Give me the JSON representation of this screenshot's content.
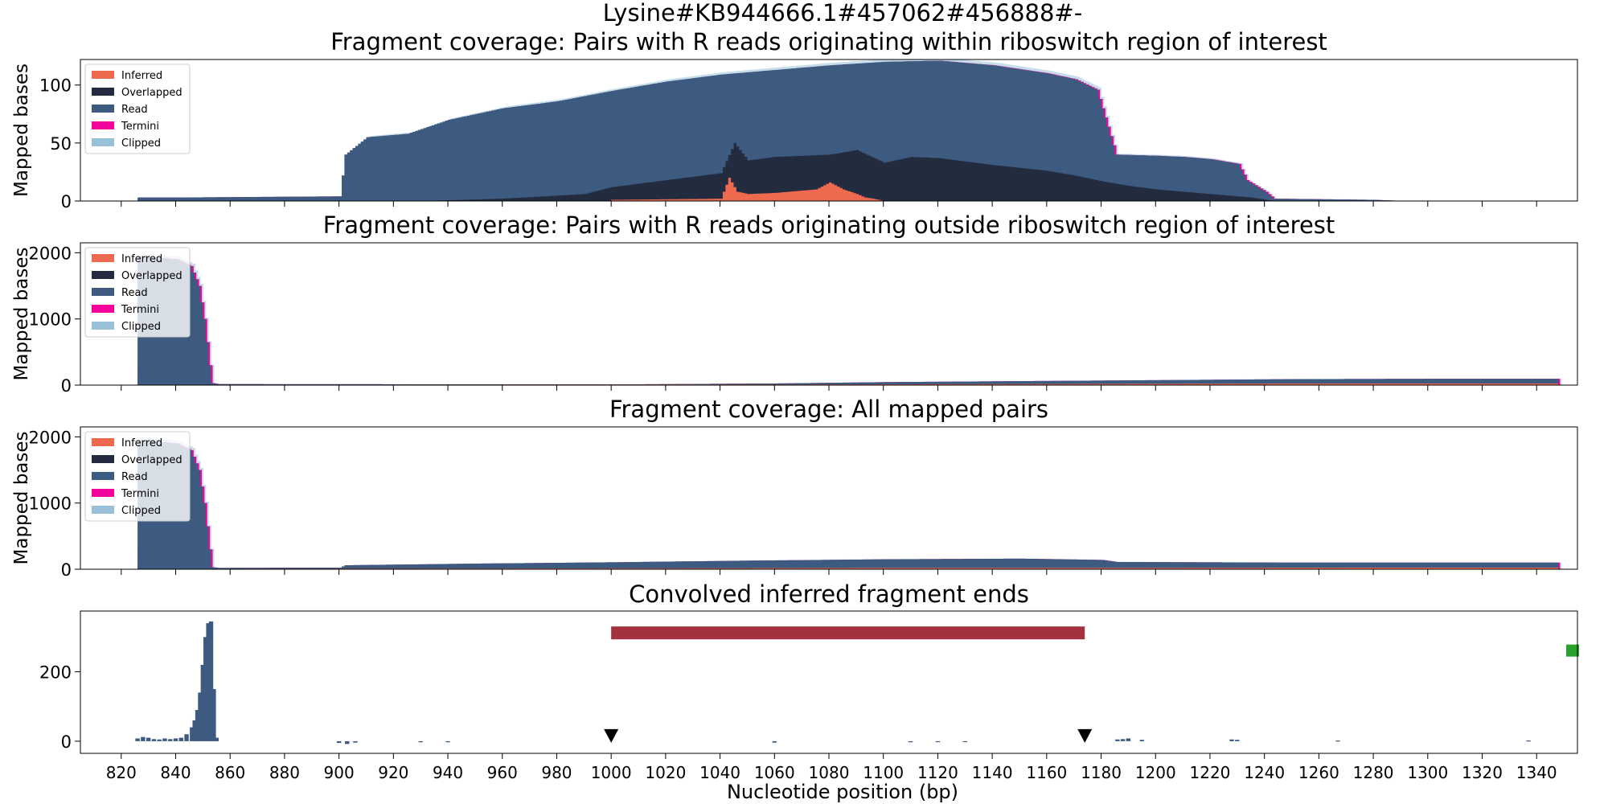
{
  "figure": {
    "suptitle": "Lysine#KB944666.1#457062#456888#-",
    "xlabel": "Nucleotide position (bp)"
  },
  "colors": {
    "inferred": "#ee6a4f",
    "overlapped": "#232c3f",
    "read": "#3d5a80",
    "termini": "#f3039b",
    "clipped": "#98c1d9",
    "region_bar": "#a3313e",
    "end_marker": "#2ca02c",
    "triangle": "#000000"
  },
  "chart_data": [
    {
      "type": "area",
      "title": "Fragment coverage: Pairs with R reads originating within riboswitch region of interest",
      "ylabel": "Mapped bases",
      "xlim": [
        805,
        1355
      ],
      "ylim": [
        0,
        122
      ],
      "yticks": [
        0,
        50,
        100
      ],
      "legend_position": "top-left",
      "legend": [
        "Inferred",
        "Overlapped",
        "Read",
        "Termini",
        "Clipped"
      ],
      "series": [
        {
          "name": "Read",
          "x": [
            826,
            840,
            900,
            902,
            910,
            925,
            940,
            960,
            980,
            1000,
            1020,
            1040,
            1060,
            1080,
            1100,
            1120,
            1140,
            1160,
            1170,
            1178,
            1185,
            1200,
            1210,
            1220,
            1230,
            1233,
            1240,
            1243,
            1280,
            1290
          ],
          "values": [
            3,
            3,
            4,
            40,
            55,
            58,
            70,
            80,
            86,
            95,
            103,
            109,
            113,
            117,
            120,
            121,
            117,
            110,
            105,
            96,
            40,
            39,
            38,
            36,
            32,
            18,
            8,
            2,
            1,
            0
          ]
        },
        {
          "name": "Overlapped",
          "x": [
            826,
            930,
            960,
            990,
            1000,
            1020,
            1040,
            1045,
            1050,
            1060,
            1080,
            1090,
            1100,
            1110,
            1120,
            1140,
            1160,
            1170,
            1180,
            1190,
            1200,
            1220,
            1235,
            1243
          ],
          "values": [
            0,
            0,
            2,
            6,
            12,
            18,
            24,
            50,
            35,
            38,
            40,
            44,
            33,
            38,
            37,
            31,
            26,
            22,
            17,
            13,
            10,
            6,
            3,
            0
          ]
        },
        {
          "name": "Inferred",
          "x": [
            1000,
            1040,
            1043,
            1046,
            1050,
            1060,
            1075,
            1080,
            1085,
            1090,
            1093,
            1096,
            1100
          ],
          "values": [
            1,
            2,
            20,
            8,
            6,
            7,
            10,
            16,
            10,
            6,
            3,
            2,
            0
          ]
        }
      ]
    },
    {
      "type": "area",
      "title": "Fragment coverage: Pairs with R reads originating outside riboswitch region of interest",
      "ylabel": "Mapped bases",
      "xlim": [
        805,
        1355
      ],
      "ylim": [
        0,
        2150
      ],
      "yticks": [
        0,
        1000,
        2000
      ],
      "legend_position": "top-left",
      "legend": [
        "Inferred",
        "Overlapped",
        "Read",
        "Termini",
        "Clipped"
      ],
      "series": [
        {
          "name": "Read",
          "x": [
            826,
            840,
            845,
            848,
            850,
            852,
            853,
            855,
            1000,
            1060,
            1100,
            1150,
            1200,
            1250,
            1300,
            1347
          ],
          "values": [
            1950,
            1900,
            1800,
            1500,
            1000,
            300,
            30,
            15,
            10,
            25,
            45,
            60,
            75,
            90,
            95,
            95
          ]
        },
        {
          "name": "Inferred",
          "x": [
            826,
            1080,
            1200,
            1300,
            1347
          ],
          "values": [
            5,
            10,
            20,
            25,
            25
          ]
        }
      ]
    },
    {
      "type": "area",
      "title": "Fragment coverage: All mapped pairs",
      "ylabel": "Mapped bases",
      "xlim": [
        805,
        1355
      ],
      "ylim": [
        0,
        2150
      ],
      "yticks": [
        0,
        1000,
        2000
      ],
      "legend_position": "top-left",
      "legend": [
        "Inferred",
        "Overlapped",
        "Read",
        "Termini",
        "Clipped"
      ],
      "series": [
        {
          "name": "Read",
          "x": [
            826,
            840,
            845,
            848,
            850,
            852,
            853,
            855,
            900,
            902,
            950,
            1000,
            1050,
            1100,
            1150,
            1180,
            1185,
            1250,
            1300,
            1347
          ],
          "values": [
            1950,
            1900,
            1800,
            1500,
            1000,
            300,
            30,
            20,
            25,
            60,
            85,
            105,
            130,
            150,
            160,
            140,
            110,
            100,
            100,
            100
          ]
        },
        {
          "name": "Inferred",
          "x": [
            826,
            1040,
            1100,
            1200,
            1300,
            1347
          ],
          "values": [
            5,
            15,
            20,
            20,
            25,
            25
          ]
        }
      ]
    },
    {
      "type": "bar",
      "title": "Convolved inferred fragment ends",
      "xlabel": "Nucleotide position (bp)",
      "xlim": [
        805,
        1355
      ],
      "ylim": [
        -35,
        375
      ],
      "yticks": [
        0,
        200
      ],
      "xticks": [
        820,
        840,
        860,
        880,
        900,
        920,
        940,
        960,
        980,
        1000,
        1020,
        1040,
        1060,
        1080,
        1100,
        1120,
        1140,
        1160,
        1180,
        1200,
        1220,
        1240,
        1260,
        1280,
        1300,
        1320,
        1340
      ],
      "x": [
        826,
        828,
        830,
        832,
        834,
        836,
        838,
        840,
        842,
        844,
        846,
        847,
        848,
        849,
        850,
        851,
        852,
        853,
        854,
        855,
        900,
        903,
        906,
        930,
        940,
        1060,
        1110,
        1120,
        1130,
        1186,
        1188,
        1190,
        1195,
        1228,
        1230,
        1267,
        1337
      ],
      "values": [
        8,
        12,
        10,
        6,
        5,
        8,
        6,
        8,
        10,
        20,
        40,
        60,
        90,
        140,
        220,
        300,
        340,
        345,
        150,
        10,
        -5,
        -8,
        -4,
        -3,
        -3,
        -4,
        -3,
        -2,
        -2,
        5,
        6,
        8,
        4,
        5,
        4,
        2,
        2
      ],
      "region_bar": {
        "start": 1000,
        "end": 1174,
        "y": 312
      },
      "triangles": [
        1000,
        1174
      ],
      "end_marker": {
        "x": 1356,
        "y": 260
      }
    }
  ]
}
